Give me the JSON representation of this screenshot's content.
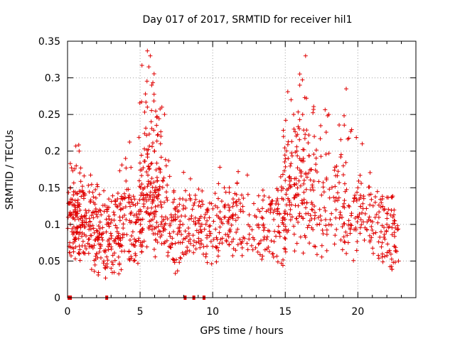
{
  "chart_data": {
    "type": "scatter",
    "title": "Day 017 of 2017, SRMTID for receiver hil1",
    "xlabel": "GPS time / hours",
    "ylabel": "SRMTID / TECUs",
    "xlim": [
      0,
      24
    ],
    "ylim": [
      0,
      0.35
    ],
    "xticks": [
      0,
      5,
      10,
      15,
      20
    ],
    "xtick_labels": [
      "0",
      "5",
      "10",
      "15",
      "20"
    ],
    "yticks": [
      0,
      0.05,
      0.1,
      0.15,
      0.2,
      0.25,
      0.3,
      0.35
    ],
    "ytick_labels": [
      "0",
      "0.05",
      "0.1",
      "0.15",
      "0.2",
      "0.25",
      "0.3",
      "0.35"
    ],
    "grid": true,
    "marker": "+",
    "color": "#e00000",
    "series": [
      {
        "name": "SRMTID",
        "note": "dense cloud of ~2000 '+' samples between 0 and ~23 h; representative points listed",
        "points": [
          [
            0.1,
            0.07
          ],
          [
            0.2,
            0.15
          ],
          [
            0.3,
            0.09
          ],
          [
            0.5,
            0.12
          ],
          [
            0.6,
            0.18
          ],
          [
            0.8,
            0.2
          ],
          [
            1.0,
            0.1
          ],
          [
            1.2,
            0.14
          ],
          [
            1.5,
            0.08
          ],
          [
            1.8,
            0.13
          ],
          [
            2.0,
            0.06
          ],
          [
            2.2,
            0.12
          ],
          [
            2.5,
            0.05
          ],
          [
            2.7,
            0.1
          ],
          [
            3.0,
            0.04
          ],
          [
            3.3,
            0.08
          ],
          [
            3.6,
            0.11
          ],
          [
            4.0,
            0.19
          ],
          [
            4.2,
            0.13
          ],
          [
            4.5,
            0.09
          ],
          [
            4.8,
            0.11
          ],
          [
            5.0,
            0.12
          ],
          [
            5.3,
            0.15
          ],
          [
            5.5,
            0.26
          ],
          [
            5.6,
            0.315
          ],
          [
            5.7,
            0.33
          ],
          [
            5.8,
            0.29
          ],
          [
            6.0,
            0.2
          ],
          [
            6.3,
            0.14
          ],
          [
            6.5,
            0.26
          ],
          [
            6.8,
            0.18
          ],
          [
            7.0,
            0.07
          ],
          [
            7.3,
            0.09
          ],
          [
            7.6,
            0.11
          ],
          [
            8.0,
            0.08
          ],
          [
            8.4,
            0.14
          ],
          [
            8.8,
            0.1
          ],
          [
            9.2,
            0.09
          ],
          [
            9.6,
            0.12
          ],
          [
            10.0,
            0.07
          ],
          [
            10.4,
            0.11
          ],
          [
            10.8,
            0.15
          ],
          [
            11.2,
            0.09
          ],
          [
            11.6,
            0.13
          ],
          [
            12.0,
            0.14
          ],
          [
            12.5,
            0.08
          ],
          [
            13.0,
            0.11
          ],
          [
            13.5,
            0.1
          ],
          [
            14.0,
            0.12
          ],
          [
            14.5,
            0.09
          ],
          [
            15.0,
            0.16
          ],
          [
            15.2,
            0.19
          ],
          [
            15.4,
            0.27
          ],
          [
            15.6,
            0.23
          ],
          [
            15.8,
            0.2
          ],
          [
            16.0,
            0.29
          ],
          [
            16.2,
            0.25
          ],
          [
            16.4,
            0.33
          ],
          [
            16.6,
            0.17
          ],
          [
            17.0,
            0.22
          ],
          [
            17.5,
            0.14
          ],
          [
            18.0,
            0.25
          ],
          [
            18.5,
            0.12
          ],
          [
            19.0,
            0.18
          ],
          [
            19.2,
            0.285
          ],
          [
            19.5,
            0.1
          ],
          [
            20.0,
            0.15
          ],
          [
            20.3,
            0.21
          ],
          [
            20.8,
            0.11
          ],
          [
            21.2,
            0.13
          ],
          [
            21.6,
            0.09
          ],
          [
            22.0,
            0.1
          ],
          [
            22.5,
            0.07
          ],
          [
            22.8,
            0.05
          ]
        ]
      }
    ],
    "gap_markers_x": [
      0.1,
      0.2,
      2.7,
      8.1,
      8.7,
      9.4
    ]
  }
}
